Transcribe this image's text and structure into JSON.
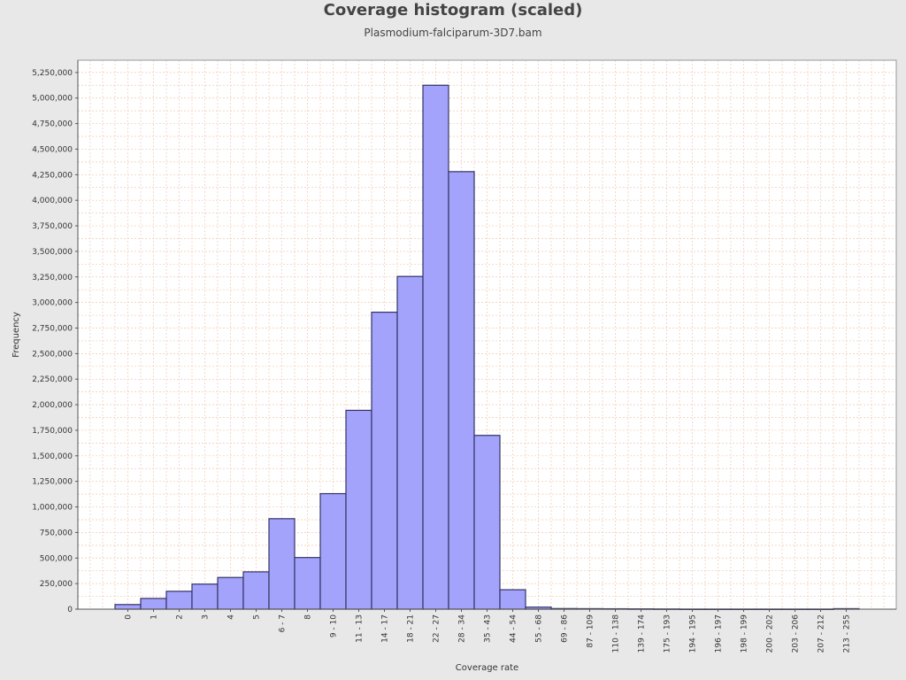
{
  "chart_data": {
    "type": "bar",
    "title": "Coverage histogram (scaled)",
    "subtitle": "Plasmodium-falciparum-3D7.bam",
    "xlabel": "Coverage rate",
    "ylabel": "Frequency",
    "categories": [
      "0",
      "1",
      "2",
      "3",
      "4",
      "5",
      "6 - 7",
      "8",
      "9 - 10",
      "11 - 13",
      "14 - 17",
      "18 - 21",
      "22 - 27",
      "28 - 34",
      "35 - 43",
      "44 - 54",
      "55 - 68",
      "69 - 86",
      "87 - 109",
      "110 - 138",
      "139 - 174",
      "175 - 193",
      "194 - 195",
      "196 - 197",
      "198 - 199",
      "200 - 202",
      "203 - 206",
      "207 - 212",
      "213 - 255"
    ],
    "values": [
      45000,
      105000,
      175000,
      245000,
      310000,
      365000,
      885000,
      505000,
      1130000,
      1945000,
      2905000,
      3255000,
      5125000,
      4280000,
      1700000,
      190000,
      20000,
      6000,
      5000,
      4000,
      3000,
      2000,
      1000,
      1000,
      1000,
      1000,
      1000,
      1000,
      5000
    ],
    "yticks": [
      0,
      250000,
      500000,
      750000,
      1000000,
      1250000,
      1500000,
      1750000,
      2000000,
      2250000,
      2500000,
      2750000,
      3000000,
      3250000,
      3500000,
      3750000,
      4000000,
      4250000,
      4500000,
      4750000,
      5000000,
      5250000
    ],
    "ylim": [
      0,
      5370000
    ],
    "grid": true,
    "colors": {
      "bar_fill": "#a3a3fb",
      "bar_stroke": "#333366",
      "grid": "#f2c8b2",
      "plot_bg": "#ffffff"
    }
  }
}
